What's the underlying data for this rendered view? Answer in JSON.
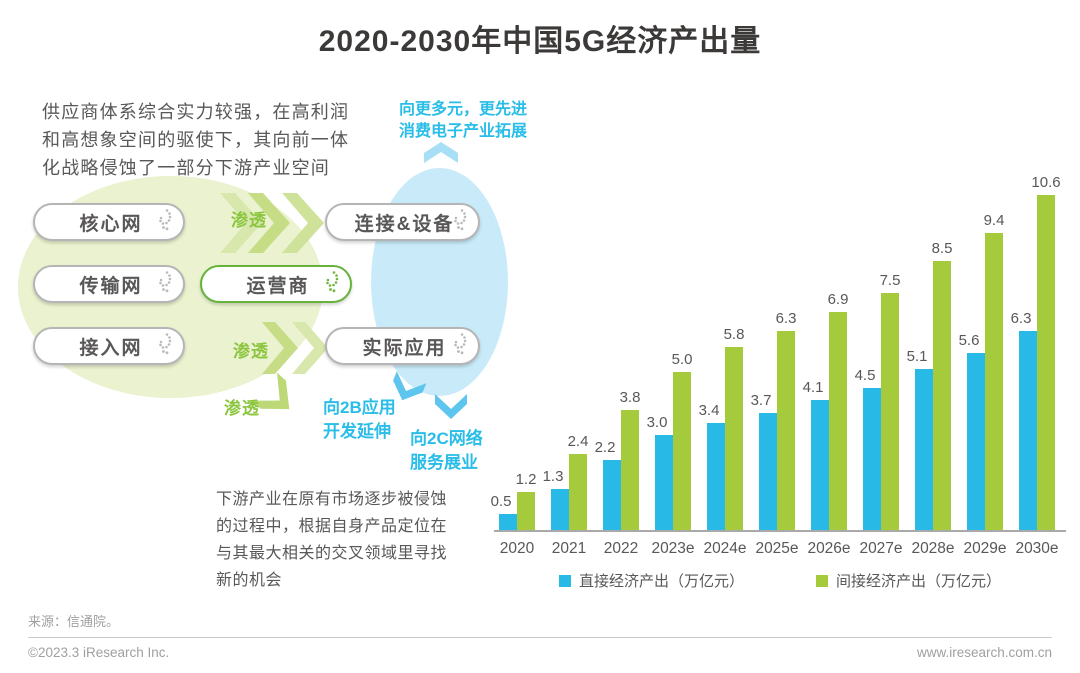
{
  "title": "2020-2030年中国5G经济产出量",
  "notes": {
    "supplier": "供应商体系综合实力较强，在高利润和高想象空间的驱使下，其向前一体化战略侵蚀了一部分下游产业空间",
    "downstream": "下游产业在原有市场逐步被侵蚀的过程中，根据自身产品定位在与其最大相关的交叉领域里寻找新的机会",
    "expand_consumer_line1": "向更多元，更先进",
    "expand_consumer_line2": "消费电子产业拓展",
    "to_2b_line1": "向2B应用",
    "to_2b_line2": "开发延伸",
    "to_2c_line1": "向2C网络",
    "to_2c_line2": "服务展业",
    "penetrate": "渗透"
  },
  "diagram": {
    "pills": {
      "core_network": "核心网",
      "transport_network": "传输网",
      "access_network": "接入网",
      "operator": "运营商",
      "connection_equipment": "连接&设备",
      "actual_application": "实际应用"
    }
  },
  "chart_data": {
    "type": "bar",
    "title": "2020-2030年中国5G经济产出量",
    "categories": [
      "2020",
      "2021",
      "2022",
      "2023e",
      "2024e",
      "2025e",
      "2026e",
      "2027e",
      "2028e",
      "2029e",
      "2030e"
    ],
    "series": [
      {
        "name": "直接经济产出（万亿元）",
        "color": "#29B9E6",
        "values": [
          0.5,
          1.3,
          2.2,
          3.0,
          3.4,
          3.7,
          4.1,
          4.5,
          5.1,
          5.6,
          6.3
        ]
      },
      {
        "name": "间接经济产出（万亿元）",
        "color": "#A5CB3D",
        "values": [
          1.2,
          2.4,
          3.8,
          5.0,
          5.8,
          6.3,
          6.9,
          7.5,
          8.5,
          9.4,
          10.6
        ]
      }
    ],
    "xlabel": "",
    "ylabel": "",
    "ylim": [
      0,
      11
    ],
    "grid": false,
    "legend_position": "bottom",
    "value_labels": true
  },
  "footer": {
    "source": "来源：信通院。",
    "copyright": "©2023.3 iResearch Inc.",
    "website": "www.iresearch.com.cn"
  },
  "colors": {
    "direct_bar": "#29B9E6",
    "indirect_bar": "#A5CB3D",
    "cyan_text": "#29BDE8",
    "green_text": "#8CC63F",
    "body_text": "#595757",
    "title_text": "#3C3A39",
    "footer_text": "#9FA0A0",
    "green_ellipse": "#EAF2CF",
    "cyan_ellipse": "#C9EBF9"
  }
}
